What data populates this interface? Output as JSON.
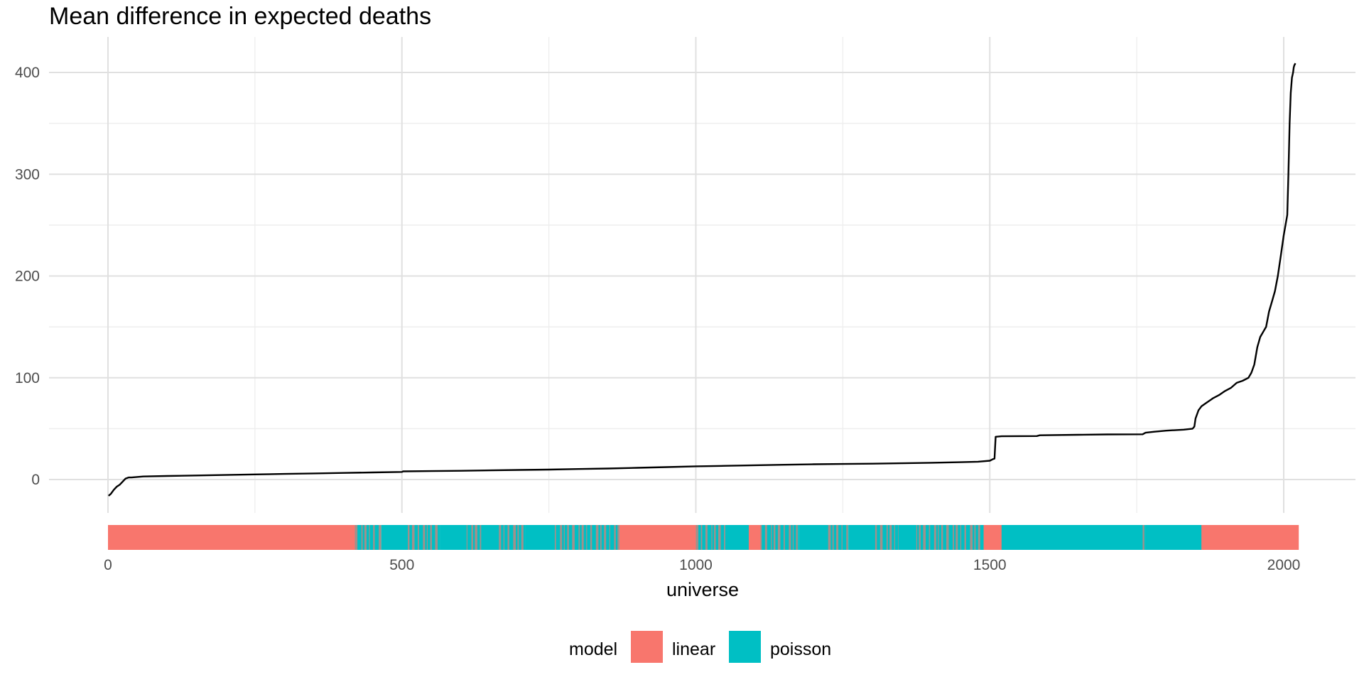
{
  "chart_data": {
    "type": "line",
    "title": "Mean difference in expected deaths",
    "xlabel": "universe",
    "ylabel": "",
    "xlim": [
      -95,
      2120
    ],
    "ylim": [
      -40,
      433
    ],
    "x_ticks": [
      0,
      500,
      1000,
      1500,
      2000
    ],
    "x_tick_labels": [
      "0",
      "500",
      "1000",
      "1500",
      "2000"
    ],
    "y_ticks": [
      0,
      100,
      200,
      300,
      400
    ],
    "y_tick_labels": [
      "0",
      "100",
      "200",
      "300",
      "400"
    ],
    "grid": true,
    "line_color": "#000000",
    "series": [
      {
        "x": [
          1,
          5,
          10,
          15,
          20,
          25,
          30,
          35,
          40,
          60,
          100,
          150,
          200,
          250,
          300,
          350,
          400,
          450,
          500,
          502,
          550,
          600,
          650,
          700,
          750,
          800,
          850,
          900,
          950,
          1000,
          1050,
          1100,
          1150,
          1200,
          1250,
          1300,
          1350,
          1400,
          1450,
          1480,
          1500,
          1505,
          1508,
          1510,
          1520,
          1580,
          1585,
          1650,
          1700,
          1760,
          1765,
          1780,
          1800,
          1830,
          1845,
          1848,
          1850,
          1855,
          1860,
          1870,
          1875,
          1880,
          1890,
          1900,
          1910,
          1920,
          1930,
          1940,
          1945,
          1950,
          1955,
          1960,
          1965,
          1970,
          1975,
          1980,
          1985,
          1990,
          1995,
          2000,
          2003,
          2006,
          2008,
          2010,
          2012,
          2014,
          2016,
          2017,
          2018,
          2019,
          2020
        ],
        "y": [
          -16,
          -14,
          -10,
          -7,
          -5,
          -2,
          1,
          2,
          2,
          3,
          3.5,
          4,
          4.5,
          5,
          5.5,
          6,
          6.5,
          7,
          7.5,
          8,
          8.3,
          8.6,
          9,
          9.4,
          9.8,
          10.3,
          10.8,
          11.5,
          12.2,
          13,
          13.5,
          14,
          14.5,
          15,
          15.3,
          15.6,
          16,
          16.5,
          17,
          17.5,
          18.5,
          20,
          20.5,
          42,
          42.5,
          42.7,
          43.5,
          44,
          44.3,
          44.5,
          46,
          47,
          48,
          49,
          50,
          52,
          60,
          68,
          72,
          76,
          78,
          80,
          83,
          87,
          90,
          95,
          97,
          100,
          105,
          113,
          130,
          140,
          145,
          150,
          165,
          175,
          185,
          200,
          220,
          240,
          250,
          260,
          300,
          350,
          380,
          395,
          400,
          405,
          407,
          408,
          409
        ]
      }
    ],
    "legend_title": "model",
    "legend_position": "bottom",
    "legend": [
      {
        "label": "linear",
        "color": "#F8766D"
      },
      {
        "label": "poisson",
        "color": "#00BFC4"
      }
    ],
    "model_strip": [
      {
        "from": 0,
        "to": 420,
        "model": "linear"
      },
      {
        "from": 420,
        "to": 465,
        "model": "mixed"
      },
      {
        "from": 465,
        "to": 510,
        "model": "poisson"
      },
      {
        "from": 510,
        "to": 565,
        "model": "mixed"
      },
      {
        "from": 565,
        "to": 610,
        "model": "poisson"
      },
      {
        "from": 610,
        "to": 635,
        "model": "mixed"
      },
      {
        "from": 635,
        "to": 665,
        "model": "poisson"
      },
      {
        "from": 665,
        "to": 710,
        "model": "mixed"
      },
      {
        "from": 710,
        "to": 760,
        "model": "poisson"
      },
      {
        "from": 760,
        "to": 870,
        "model": "mixed"
      },
      {
        "from": 870,
        "to": 1000,
        "model": "linear"
      },
      {
        "from": 1000,
        "to": 1050,
        "model": "mixed"
      },
      {
        "from": 1050,
        "to": 1090,
        "model": "poisson"
      },
      {
        "from": 1090,
        "to": 1110,
        "model": "linear"
      },
      {
        "from": 1110,
        "to": 1175,
        "model": "mixed"
      },
      {
        "from": 1175,
        "to": 1225,
        "model": "poisson"
      },
      {
        "from": 1225,
        "to": 1260,
        "model": "mixed"
      },
      {
        "from": 1260,
        "to": 1305,
        "model": "poisson"
      },
      {
        "from": 1305,
        "to": 1345,
        "model": "mixed"
      },
      {
        "from": 1345,
        "to": 1375,
        "model": "poisson"
      },
      {
        "from": 1375,
        "to": 1490,
        "model": "mixed"
      },
      {
        "from": 1490,
        "to": 1520,
        "model": "linear"
      },
      {
        "from": 1520,
        "to": 1760,
        "model": "poisson"
      },
      {
        "from": 1760,
        "to": 1765,
        "model": "mixed"
      },
      {
        "from": 1765,
        "to": 1860,
        "model": "poisson"
      },
      {
        "from": 1860,
        "to": 2025,
        "model": "linear"
      }
    ]
  }
}
